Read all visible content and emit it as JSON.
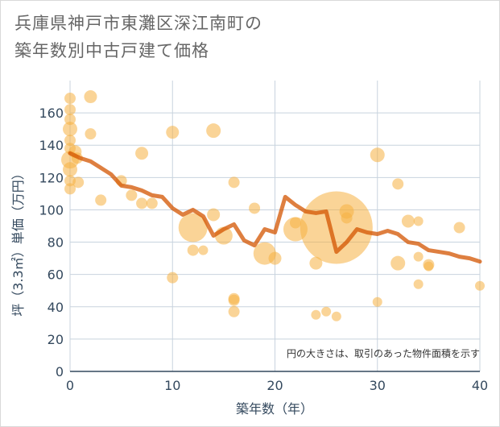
{
  "chart_data": {
    "type": "scatter",
    "title_lines": [
      "兵庫県神戸市東灘区深江南町の",
      "築年数別中古戸建て価格"
    ],
    "xlabel": "築年数（年）",
    "ylabel": "坪（3.3㎡）単価（万円）",
    "xlim": [
      0,
      40
    ],
    "ylim": [
      0,
      180
    ],
    "x_ticks": [
      0,
      10,
      20,
      30,
      40
    ],
    "y_ticks": [
      0,
      20,
      40,
      60,
      80,
      100,
      120,
      140,
      160
    ],
    "note": "円の大きさは、取引のあった物件面積を示す",
    "colors": {
      "bubble": "#f5b041",
      "line": "#d35400",
      "grid": "#c8d3de",
      "axis": "#34495e"
    },
    "series": [
      {
        "name": "取引事例",
        "kind": "bubble",
        "points": [
          {
            "x": 0,
            "y": 169,
            "r": 7
          },
          {
            "x": 0,
            "y": 162,
            "r": 7
          },
          {
            "x": 0,
            "y": 156,
            "r": 7
          },
          {
            "x": 0,
            "y": 150,
            "r": 9
          },
          {
            "x": 0,
            "y": 143,
            "r": 7
          },
          {
            "x": 0,
            "y": 138,
            "r": 7
          },
          {
            "x": 0,
            "y": 131,
            "r": 11
          },
          {
            "x": 0,
            "y": 125,
            "r": 9
          },
          {
            "x": 0,
            "y": 118,
            "r": 7
          },
          {
            "x": 0,
            "y": 113,
            "r": 7
          },
          {
            "x": 0.5,
            "y": 136,
            "r": 8
          },
          {
            "x": 0.7,
            "y": 132,
            "r": 7
          },
          {
            "x": 0.8,
            "y": 117,
            "r": 7
          },
          {
            "x": 2,
            "y": 170,
            "r": 8
          },
          {
            "x": 2,
            "y": 147,
            "r": 7
          },
          {
            "x": 3,
            "y": 106,
            "r": 7
          },
          {
            "x": 5,
            "y": 118,
            "r": 7
          },
          {
            "x": 6,
            "y": 109,
            "r": 7
          },
          {
            "x": 7,
            "y": 135,
            "r": 8
          },
          {
            "x": 7,
            "y": 104,
            "r": 7
          },
          {
            "x": 8,
            "y": 104,
            "r": 7
          },
          {
            "x": 10,
            "y": 148,
            "r": 8
          },
          {
            "x": 10,
            "y": 58,
            "r": 7
          },
          {
            "x": 12,
            "y": 89,
            "r": 18
          },
          {
            "x": 12,
            "y": 75,
            "r": 7
          },
          {
            "x": 13,
            "y": 75,
            "r": 6
          },
          {
            "x": 14,
            "y": 149,
            "r": 9
          },
          {
            "x": 14,
            "y": 97,
            "r": 8
          },
          {
            "x": 15,
            "y": 84,
            "r": 11
          },
          {
            "x": 16,
            "y": 117,
            "r": 7
          },
          {
            "x": 16,
            "y": 45,
            "r": 7
          },
          {
            "x": 16,
            "y": 44,
            "r": 7
          },
          {
            "x": 16,
            "y": 37,
            "r": 7
          },
          {
            "x": 18,
            "y": 101,
            "r": 7
          },
          {
            "x": 19,
            "y": 73,
            "r": 14
          },
          {
            "x": 20,
            "y": 70,
            "r": 8
          },
          {
            "x": 22,
            "y": 88,
            "r": 15
          },
          {
            "x": 22,
            "y": 92,
            "r": 7
          },
          {
            "x": 24,
            "y": 67,
            "r": 8
          },
          {
            "x": 24,
            "y": 35,
            "r": 6
          },
          {
            "x": 25,
            "y": 37,
            "r": 6
          },
          {
            "x": 26,
            "y": 89,
            "r": 45
          },
          {
            "x": 26,
            "y": 34,
            "r": 6
          },
          {
            "x": 27,
            "y": 99,
            "r": 9
          },
          {
            "x": 27,
            "y": 95,
            "r": 7
          },
          {
            "x": 30,
            "y": 134,
            "r": 9
          },
          {
            "x": 30,
            "y": 43,
            "r": 6
          },
          {
            "x": 32,
            "y": 116,
            "r": 7
          },
          {
            "x": 32,
            "y": 67,
            "r": 9
          },
          {
            "x": 33,
            "y": 93,
            "r": 8
          },
          {
            "x": 34,
            "y": 93,
            "r": 6
          },
          {
            "x": 34,
            "y": 71,
            "r": 6
          },
          {
            "x": 34,
            "y": 54,
            "r": 6
          },
          {
            "x": 35,
            "y": 66,
            "r": 7
          },
          {
            "x": 35,
            "y": 65,
            "r": 6
          },
          {
            "x": 38,
            "y": 89,
            "r": 7
          },
          {
            "x": 40,
            "y": 53,
            "r": 6
          }
        ]
      },
      {
        "name": "平均",
        "kind": "line",
        "x": [
          0,
          1,
          2,
          3,
          4,
          5,
          6,
          7,
          8,
          9,
          10,
          11,
          12,
          13,
          14,
          15,
          16,
          17,
          18,
          19,
          20,
          21,
          22,
          23,
          24,
          25,
          26,
          27,
          28,
          29,
          30,
          31,
          32,
          33,
          34,
          35,
          36,
          37,
          38,
          39,
          40
        ],
        "y": [
          135,
          132,
          130,
          126,
          122,
          115,
          114,
          112,
          109,
          108,
          101,
          97,
          100,
          96,
          84,
          88,
          91,
          81,
          78,
          88,
          86,
          108,
          103,
          99,
          98,
          99,
          74,
          80,
          88,
          86,
          85,
          87,
          85,
          80,
          79,
          75,
          74,
          73,
          71,
          70,
          68
        ]
      }
    ]
  }
}
